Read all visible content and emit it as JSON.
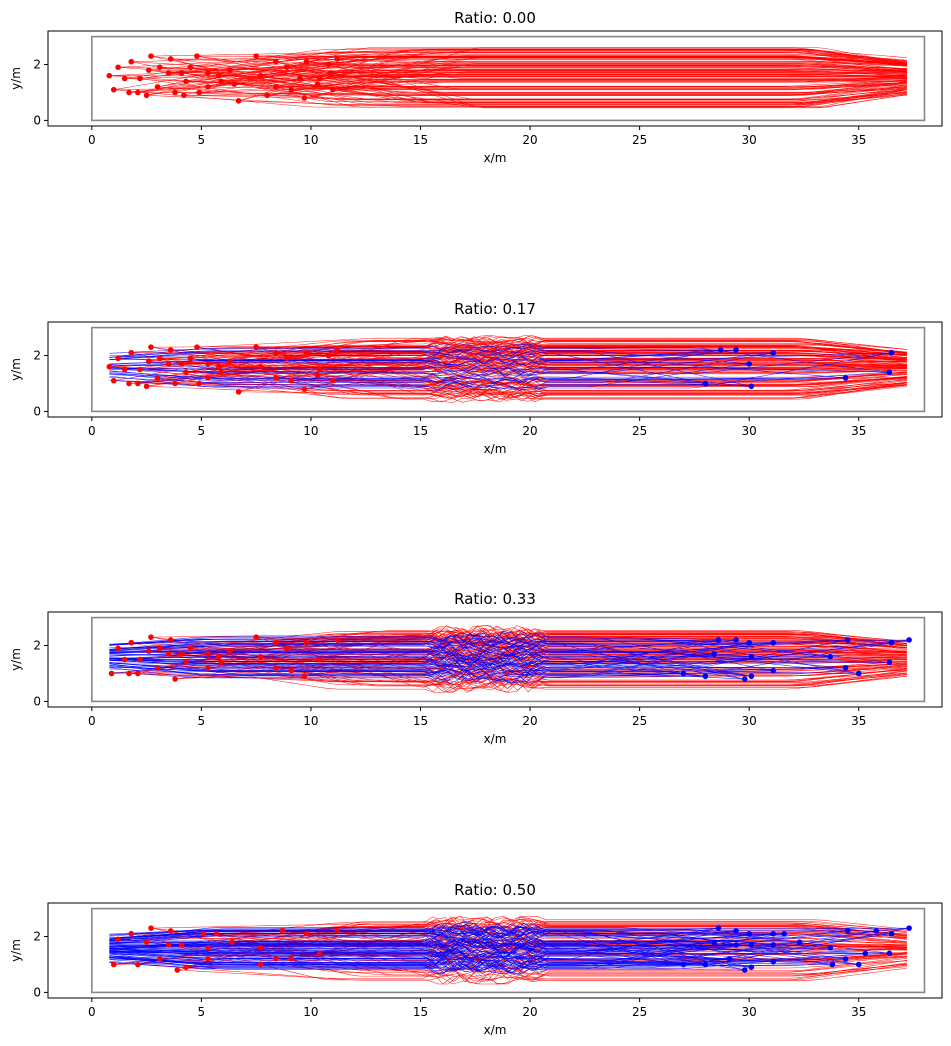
{
  "chart_data": [
    {
      "type": "scatter",
      "title": "Ratio: 0.00",
      "xlabel": "x/m",
      "ylabel": "y/m",
      "xlim": [
        -2,
        38.8
      ],
      "ylim": [
        -0.2,
        3.2
      ],
      "xticks": [
        0,
        5,
        10,
        15,
        20,
        25,
        30,
        35
      ],
      "yticks": [
        0,
        2
      ],
      "corridor": {
        "x": [
          0,
          38
        ],
        "y": [
          0,
          3
        ],
        "color": "#808890"
      },
      "series": [
        {
          "name": "red group",
          "color": "#ff0000",
          "direction": "right",
          "points": [
            [
              0.8,
              1.6
            ],
            [
              1.2,
              1.9
            ],
            [
              1.8,
              2.1
            ],
            [
              2.2,
              1.5
            ],
            [
              2.6,
              1.8
            ],
            [
              2.7,
              2.3
            ],
            [
              3.1,
              1.9
            ],
            [
              3.5,
              1.7
            ],
            [
              3.6,
              2.2
            ],
            [
              4.1,
              1.7
            ],
            [
              4.5,
              1.9
            ],
            [
              4.8,
              2.3
            ],
            [
              5.3,
              1.7
            ],
            [
              5.8,
              1.6
            ],
            [
              6.3,
              1.8
            ],
            [
              7.5,
              2.3
            ],
            [
              8.4,
              2.1
            ],
            [
              8.9,
              1.9
            ],
            [
              9.8,
              2.1
            ],
            [
              10.4,
              1.5
            ],
            [
              10.8,
              2.0
            ],
            [
              11.2,
              2.2
            ],
            [
              1.0,
              1.1
            ],
            [
              1.5,
              1.5
            ],
            [
              1.7,
              1.0
            ],
            [
              2.1,
              1.0
            ],
            [
              2.5,
              0.9
            ],
            [
              3.0,
              1.2
            ],
            [
              3.8,
              1.0
            ],
            [
              4.3,
              1.4
            ],
            [
              4.9,
              1.0
            ],
            [
              5.3,
              1.2
            ],
            [
              5.9,
              1.4
            ],
            [
              6.7,
              0.7
            ],
            [
              7.7,
              1.6
            ],
            [
              8.4,
              1.2
            ],
            [
              9.1,
              1.1
            ],
            [
              9.7,
              0.8
            ],
            [
              10.3,
              1.3
            ],
            [
              11.0,
              1.1
            ],
            [
              4.2,
              0.9
            ],
            [
              6.5,
              1.3
            ],
            [
              8.0,
              0.9
            ],
            [
              9.5,
              1.5
            ],
            [
              10.9,
              1.7
            ]
          ]
        },
        {
          "name": "blue group",
          "color": "#0000ff",
          "direction": "left",
          "points": []
        }
      ]
    },
    {
      "type": "scatter",
      "title": "Ratio: 0.17",
      "xlabel": "x/m",
      "ylabel": "y/m",
      "xlim": [
        -2,
        38.8
      ],
      "ylim": [
        -0.2,
        3.2
      ],
      "xticks": [
        0,
        5,
        10,
        15,
        20,
        25,
        30,
        35
      ],
      "yticks": [
        0,
        2
      ],
      "corridor": {
        "x": [
          0,
          38
        ],
        "y": [
          0,
          3
        ],
        "color": "#808890"
      },
      "series": [
        {
          "name": "red group",
          "color": "#ff0000",
          "direction": "right",
          "points": [
            [
              0.8,
              1.6
            ],
            [
              1.2,
              1.9
            ],
            [
              1.8,
              2.1
            ],
            [
              2.2,
              1.5
            ],
            [
              2.6,
              1.8
            ],
            [
              2.7,
              2.3
            ],
            [
              3.1,
              1.9
            ],
            [
              3.5,
              1.7
            ],
            [
              3.6,
              2.2
            ],
            [
              4.1,
              1.7
            ],
            [
              4.5,
              1.9
            ],
            [
              4.8,
              2.3
            ],
            [
              5.3,
              1.7
            ],
            [
              5.8,
              1.6
            ],
            [
              6.3,
              1.8
            ],
            [
              7.5,
              2.3
            ],
            [
              8.4,
              2.1
            ],
            [
              8.9,
              1.9
            ],
            [
              9.8,
              2.1
            ],
            [
              10.4,
              1.5
            ],
            [
              10.8,
              2.0
            ],
            [
              11.2,
              2.2
            ],
            [
              1.0,
              1.1
            ],
            [
              1.5,
              1.5
            ],
            [
              1.7,
              1.0
            ],
            [
              2.1,
              1.0
            ],
            [
              2.5,
              0.9
            ],
            [
              3.0,
              1.2
            ],
            [
              3.8,
              1.0
            ],
            [
              4.3,
              1.4
            ],
            [
              4.9,
              1.0
            ],
            [
              5.3,
              1.2
            ],
            [
              5.9,
              1.4
            ],
            [
              6.7,
              0.7
            ],
            [
              7.7,
              1.6
            ],
            [
              8.4,
              1.2
            ],
            [
              9.1,
              1.1
            ],
            [
              9.7,
              0.8
            ],
            [
              10.3,
              1.3
            ],
            [
              11.0,
              1.1
            ]
          ]
        },
        {
          "name": "blue group",
          "color": "#0000ff",
          "direction": "left",
          "points": [
            [
              28.7,
              2.2
            ],
            [
              29.4,
              2.2
            ],
            [
              31.1,
              2.1
            ],
            [
              36.5,
              2.1
            ],
            [
              30.0,
              1.7
            ],
            [
              28.0,
              1.0
            ],
            [
              30.1,
              0.9
            ],
            [
              34.4,
              1.2
            ],
            [
              36.4,
              1.4
            ]
          ]
        }
      ]
    },
    {
      "type": "scatter",
      "title": "Ratio: 0.33",
      "xlabel": "x/m",
      "ylabel": "y/m",
      "xlim": [
        -2,
        38.8
      ],
      "ylim": [
        -0.2,
        3.2
      ],
      "xticks": [
        0,
        5,
        10,
        15,
        20,
        25,
        30,
        35
      ],
      "yticks": [
        0,
        2
      ],
      "corridor": {
        "x": [
          0,
          38
        ],
        "y": [
          0,
          3
        ],
        "color": "#808890"
      },
      "series": [
        {
          "name": "red group",
          "color": "#ff0000",
          "direction": "right",
          "points": [
            [
              0.9,
              1.0
            ],
            [
              1.2,
              1.9
            ],
            [
              1.8,
              2.1
            ],
            [
              2.2,
              1.5
            ],
            [
              2.6,
              1.8
            ],
            [
              2.7,
              2.3
            ],
            [
              3.1,
              1.9
            ],
            [
              3.5,
              1.7
            ],
            [
              3.6,
              2.2
            ],
            [
              4.1,
              1.7
            ],
            [
              4.5,
              1.9
            ],
            [
              5.3,
              1.7
            ],
            [
              5.8,
              1.6
            ],
            [
              6.3,
              1.8
            ],
            [
              7.5,
              2.3
            ],
            [
              8.4,
              2.1
            ],
            [
              8.9,
              1.9
            ],
            [
              9.8,
              2.1
            ],
            [
              10.4,
              1.5
            ],
            [
              11.2,
              2.2
            ],
            [
              1.5,
              1.5
            ],
            [
              1.7,
              1.0
            ],
            [
              2.1,
              1.0
            ],
            [
              3.0,
              1.2
            ],
            [
              3.8,
              0.8
            ],
            [
              4.3,
              1.4
            ],
            [
              5.3,
              1.2
            ],
            [
              5.9,
              1.4
            ],
            [
              7.7,
              1.6
            ],
            [
              8.4,
              1.2
            ],
            [
              9.1,
              1.1
            ],
            [
              9.7,
              0.9
            ]
          ]
        },
        {
          "name": "blue group",
          "color": "#0000ff",
          "direction": "left",
          "points": [
            [
              28.6,
              2.2
            ],
            [
              29.4,
              2.2
            ],
            [
              30.0,
              2.1
            ],
            [
              31.1,
              2.1
            ],
            [
              34.5,
              2.2
            ],
            [
              36.5,
              2.1
            ],
            [
              37.3,
              2.2
            ],
            [
              28.4,
              1.7
            ],
            [
              30.1,
              1.6
            ],
            [
              33.7,
              1.6
            ],
            [
              27.0,
              1.0
            ],
            [
              28.0,
              0.9
            ],
            [
              29.8,
              0.8
            ],
            [
              30.1,
              0.9
            ],
            [
              31.1,
              1.1
            ],
            [
              34.4,
              1.2
            ],
            [
              35.0,
              1.0
            ],
            [
              36.4,
              1.4
            ]
          ]
        }
      ]
    },
    {
      "type": "scatter",
      "title": "Ratio: 0.50",
      "xlabel": "x/m",
      "ylabel": "y/m",
      "xlim": [
        -2,
        38.8
      ],
      "ylim": [
        -0.2,
        3.2
      ],
      "xticks": [
        0,
        5,
        10,
        15,
        20,
        25,
        30,
        35
      ],
      "yticks": [
        0,
        2
      ],
      "corridor": {
        "x": [
          0,
          38
        ],
        "y": [
          0,
          3
        ],
        "color": "#808890"
      },
      "series": [
        {
          "name": "red group",
          "color": "#ff0000",
          "direction": "right",
          "points": [
            [
              1.0,
              1.0
            ],
            [
              1.2,
              1.9
            ],
            [
              1.8,
              2.1
            ],
            [
              2.1,
              1.0
            ],
            [
              2.5,
              1.8
            ],
            [
              2.7,
              2.3
            ],
            [
              3.1,
              1.2
            ],
            [
              3.5,
              1.7
            ],
            [
              3.6,
              2.2
            ],
            [
              3.9,
              0.8
            ],
            [
              4.1,
              1.7
            ],
            [
              4.3,
              0.9
            ],
            [
              5.1,
              2.1
            ],
            [
              5.3,
              1.6
            ],
            [
              5.3,
              1.2
            ],
            [
              5.7,
              2.1
            ],
            [
              6.4,
              1.8
            ],
            [
              7.7,
              1.6
            ],
            [
              7.7,
              1.0
            ],
            [
              8.4,
              1.2
            ],
            [
              8.7,
              2.2
            ],
            [
              9.1,
              1.2
            ],
            [
              9.8,
              2.1
            ],
            [
              10.4,
              1.4
            ],
            [
              11.2,
              2.2
            ]
          ]
        },
        {
          "name": "blue group",
          "color": "#0000ff",
          "direction": "left",
          "points": [
            [
              28.6,
              2.3
            ],
            [
              29.4,
              2.2
            ],
            [
              30.0,
              2.1
            ],
            [
              31.1,
              2.1
            ],
            [
              31.6,
              2.1
            ],
            [
              34.5,
              2.2
            ],
            [
              35.8,
              2.2
            ],
            [
              36.5,
              2.1
            ],
            [
              37.3,
              2.3
            ],
            [
              28.4,
              1.8
            ],
            [
              29.4,
              1.7
            ],
            [
              30.1,
              1.7
            ],
            [
              31.1,
              1.7
            ],
            [
              32.3,
              1.8
            ],
            [
              33.7,
              1.6
            ],
            [
              35.3,
              1.4
            ],
            [
              36.4,
              1.4
            ],
            [
              27.0,
              1.0
            ],
            [
              28.0,
              1.0
            ],
            [
              29.1,
              1.2
            ],
            [
              29.8,
              0.8
            ],
            [
              30.1,
              0.9
            ],
            [
              31.1,
              1.1
            ],
            [
              33.8,
              1.0
            ],
            [
              34.4,
              1.2
            ],
            [
              35.0,
              1.0
            ]
          ]
        }
      ]
    }
  ]
}
